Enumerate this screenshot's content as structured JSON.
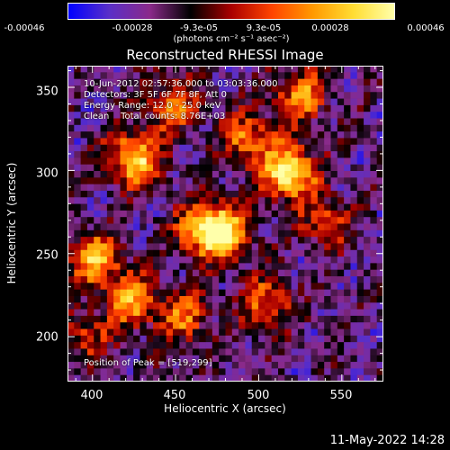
{
  "colorbar": {
    "colors": [
      "#0000ff",
      "#5a2fc8",
      "#8a2a8a",
      "#000000",
      "#aa0000",
      "#ff4400",
      "#ff9900",
      "#ffdd33",
      "#ffffaa"
    ],
    "ticks": [
      "-0.00046",
      "-0.00028",
      "-9.3e-05",
      "9.3e-05",
      "0.00028",
      "0.00046"
    ],
    "unit": "(photons cm⁻² s⁻¹ asec⁻²)"
  },
  "chart_data": {
    "type": "heatmap",
    "title": "Reconstructed RHESSI Image",
    "xlabel": "Heliocentric X (arcsec)",
    "ylabel": "Heliocentric Y (arcsec)",
    "xlim": [
      385,
      575
    ],
    "ylim": [
      173,
      363
    ],
    "x_ticks": [
      400,
      450,
      500,
      550
    ],
    "y_ticks": [
      200,
      250,
      300,
      350
    ],
    "peak": [
      519,
      299
    ],
    "bright_sources": [
      {
        "x": 425,
        "y": 307,
        "value": 0.0004
      },
      {
        "x": 518,
        "y": 299,
        "value": 0.00046
      },
      {
        "x": 467,
        "y": 265,
        "value": 0.00035
      },
      {
        "x": 480,
        "y": 262,
        "value": 0.00032
      },
      {
        "x": 402,
        "y": 247,
        "value": 0.00033
      },
      {
        "x": 424,
        "y": 222,
        "value": 0.0003
      },
      {
        "x": 525,
        "y": 345,
        "value": 0.00028
      },
      {
        "x": 448,
        "y": 340,
        "value": 0.00026
      },
      {
        "x": 493,
        "y": 319,
        "value": 0.00027
      },
      {
        "x": 505,
        "y": 220,
        "value": 0.00025
      },
      {
        "x": 455,
        "y": 212,
        "value": 0.00024
      },
      {
        "x": 540,
        "y": 270,
        "value": 0.0002
      },
      {
        "x": 395,
        "y": 200,
        "value": 0.00018
      }
    ],
    "annotations": {
      "line1": "10-Jun-2012 02:57:36.000 to 03:03:36.000",
      "line2": "Detectors: 3F 5F 6F 7F 8F, Att 0",
      "line3": "Energy Range: 12.0 - 25.0 keV",
      "line4": "Clean    Total counts: 8.76E+03",
      "peak_label": "Position of Peak = [519,299]"
    }
  },
  "footer": "11-May-2022 14:28"
}
